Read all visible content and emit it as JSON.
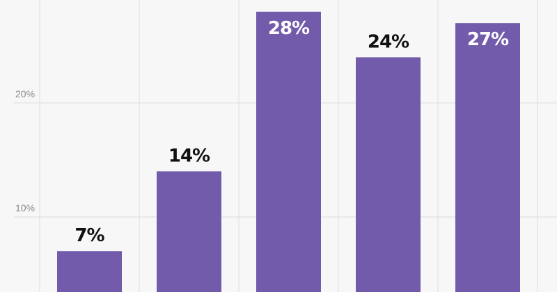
{
  "chart_data": {
    "type": "bar",
    "categories": [
      "",
      "",
      "",
      "",
      ""
    ],
    "values": [
      7,
      14,
      28,
      24,
      27
    ],
    "data_labels": [
      "7%",
      "14%",
      "28%",
      "24%",
      "27%"
    ],
    "y_ticks": [
      {
        "value": 10,
        "label": "10%"
      },
      {
        "value": 20,
        "label": "20%"
      }
    ],
    "ylim": [
      0,
      29.3
    ],
    "grid": true,
    "title": "",
    "xlabel": "",
    "ylabel": ""
  },
  "colors": {
    "bar": "#725bab",
    "background": "#f7f7f7",
    "grid": "#dcdcdc",
    "label_outside": "#111111",
    "label_inside": "#ffffff",
    "tick_text": "#8a8a8a"
  }
}
